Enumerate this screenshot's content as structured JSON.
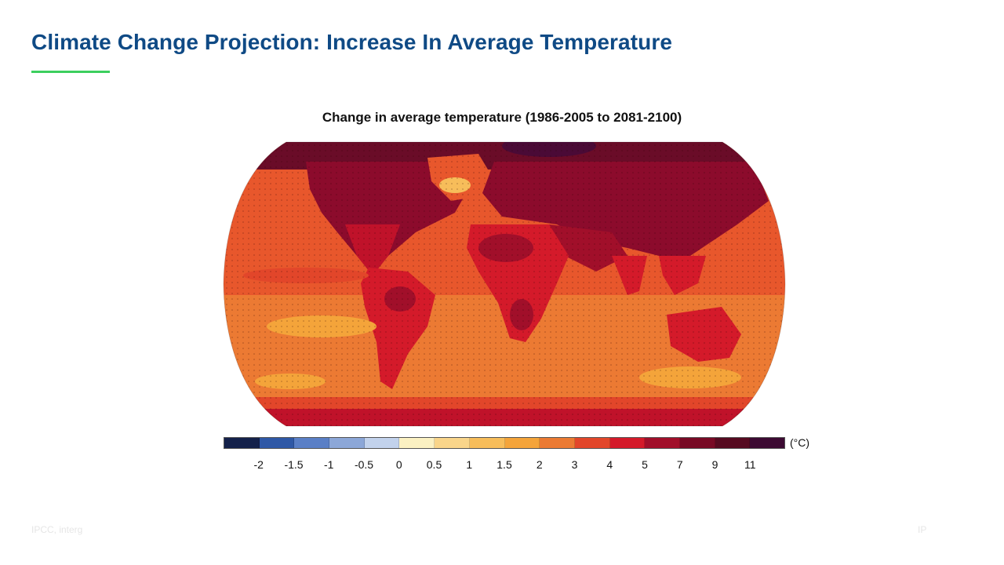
{
  "slide": {
    "title": "Climate Change Projection: Increase In Average Temperature",
    "accent_color": "#3ccf5e",
    "title_color": "#0f4a85"
  },
  "map": {
    "title": "Change in average temperature (1986-2005 to 2081-2100)",
    "projection": "robinson",
    "dominant_colors": {
      "arctic": "#5a0f2a",
      "northern_land": "#8c0b2c",
      "tropical_land": "#d41a2a",
      "ocean_warm": "#e8572c",
      "ocean_cool": "#f4a43a",
      "southern_ocean": "#f08a30"
    }
  },
  "legend": {
    "unit": "(°C)",
    "colors": [
      "#14214a",
      "#2f58a6",
      "#5a7fc6",
      "#8ca7d8",
      "#c2d2ec",
      "#fbf1c2",
      "#f9d58a",
      "#f7bd5a",
      "#f4a43a",
      "#eb7a33",
      "#e2462a",
      "#d41a2a",
      "#a10f2a",
      "#780a25",
      "#560a20",
      "#3c0a32"
    ],
    "ticks": [
      "-2",
      "-1.5",
      "-1",
      "-0.5",
      "0",
      "0.5",
      "1",
      "1.5",
      "2",
      "3",
      "4",
      "5",
      "7",
      "9",
      "11"
    ]
  },
  "footer": {
    "left": "IPCC, interg",
    "right": "IP"
  }
}
